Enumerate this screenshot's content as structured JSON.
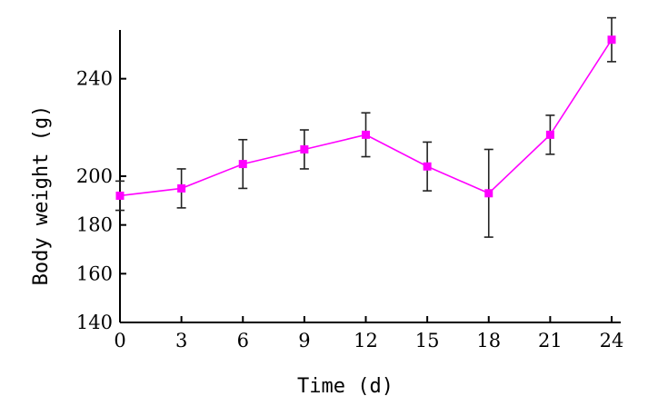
{
  "chart_data": {
    "type": "line",
    "title": "",
    "xlabel": "Time (d)",
    "ylabel": "Body weight (g)",
    "x": [
      0,
      3,
      6,
      9,
      12,
      15,
      18,
      21,
      24
    ],
    "x_ticks": [
      "0",
      "3",
      "6",
      "9",
      "12",
      "15",
      "18",
      "21",
      "24"
    ],
    "y_ticks": [
      "140",
      "160",
      "180",
      "200",
      "240"
    ],
    "y_tick_values": [
      140,
      160,
      180,
      200,
      240
    ],
    "ylim": [
      140,
      260
    ],
    "xlim": [
      0,
      24
    ],
    "grid": false,
    "legend": "none",
    "series": [
      {
        "values": [
          192,
          195,
          205,
          211,
          217,
          204,
          193,
          217,
          256
        ],
        "error": [
          6,
          8,
          10,
          8,
          9,
          10,
          18,
          8,
          9
        ],
        "color": "#ff00ff",
        "marker": "square"
      }
    ]
  }
}
